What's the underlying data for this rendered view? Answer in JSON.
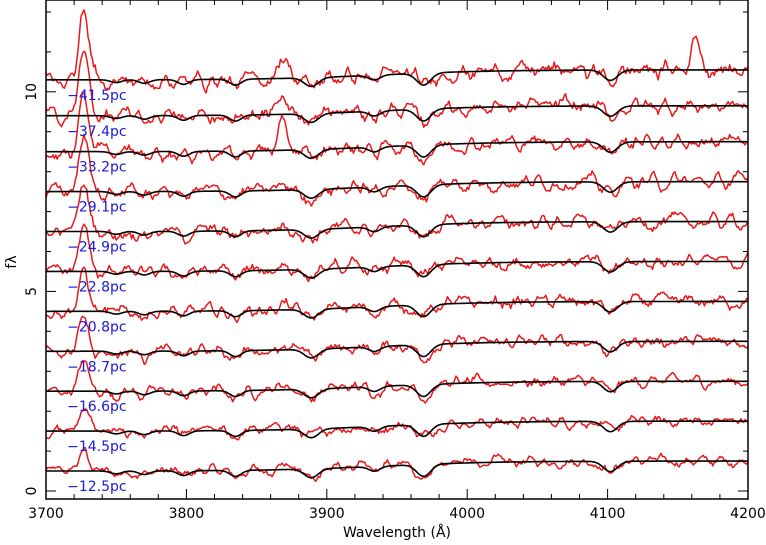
{
  "chart_data": {
    "type": "line",
    "xlabel": "Wavelength (Å)",
    "ylabel": "fλ",
    "xlim": [
      3700,
      4200
    ],
    "ylim": [
      -0.2,
      12.3
    ],
    "x_ticks": [
      "3700",
      "3800",
      "3900",
      "4000",
      "4100",
      "4200"
    ],
    "y_ticks": [
      "0",
      "5",
      "10"
    ],
    "grid": false,
    "colors": {
      "observed": "#e8191b",
      "model": "#000000",
      "label": "#1a1ad8"
    },
    "absorption_lines_angstrom": [
      3750,
      3770,
      3798,
      3835,
      3889,
      3934,
      3969,
      4102
    ],
    "series": [
      {
        "label": "−12.5pc",
        "offset": 0.5
      },
      {
        "label": "−14.5pc",
        "offset": 1.5
      },
      {
        "label": "−16.6pc",
        "offset": 2.5
      },
      {
        "label": "−18.7pc",
        "offset": 3.5
      },
      {
        "label": "−20.8pc",
        "offset": 4.5
      },
      {
        "label": "−22.8pc",
        "offset": 5.5
      },
      {
        "label": "−24.9pc",
        "offset": 6.5
      },
      {
        "label": "−29.1pc",
        "offset": 7.5
      },
      {
        "label": "−33.2pc",
        "offset": 8.5
      },
      {
        "label": "−37.4pc",
        "offset": 9.4
      },
      {
        "label": "−41.5pc",
        "offset": 10.3
      }
    ]
  }
}
